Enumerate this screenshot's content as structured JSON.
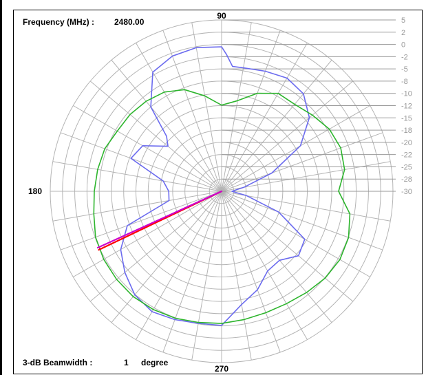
{
  "chart_data": {
    "type": "polar-line",
    "header": {
      "frequency_label": "Frequency (MHz) :",
      "frequency_value": "2480.00"
    },
    "footer": {
      "beamwidth_label": "3-dB Beamwidth :",
      "beamwidth_value": "1",
      "beamwidth_unit": "degree"
    },
    "angle_labels": [
      {
        "text": "90",
        "angle": 90
      },
      {
        "text": "180",
        "angle": 180
      },
      {
        "text": "270",
        "angle": 270
      }
    ],
    "radial_scale": {
      "unit": "dB",
      "min": -30,
      "max": 5,
      "ticks": [
        {
          "value": 5,
          "text": "5"
        },
        {
          "value": 2.5,
          "text": "2"
        },
        {
          "value": 0,
          "text": "0"
        },
        {
          "value": -2.5,
          "text": "-2"
        },
        {
          "value": -5,
          "text": "-5"
        },
        {
          "value": -7.5,
          "text": "-8"
        },
        {
          "value": -10,
          "text": "-10"
        },
        {
          "value": -12.5,
          "text": "-12"
        },
        {
          "value": -15,
          "text": "-15"
        },
        {
          "value": -17.5,
          "text": "-18"
        },
        {
          "value": -20,
          "text": "-20"
        },
        {
          "value": -22.5,
          "text": "-22"
        },
        {
          "value": -25,
          "text": "-25"
        },
        {
          "value": -27.5,
          "text": "-28"
        },
        {
          "value": -30,
          "text": "-30"
        }
      ]
    },
    "grid": true,
    "angular_grid_step_deg": 10,
    "series": [
      {
        "color": "#6b6bef",
        "points": [
          [
            0,
            -27.9
          ],
          [
            10,
            -25.4
          ],
          [
            20,
            -19.1
          ],
          [
            30,
            -11.4
          ],
          [
            40,
            -6.6
          ],
          [
            50,
            -4.0
          ],
          [
            60,
            -3.3
          ],
          [
            70,
            -3.9
          ],
          [
            80,
            -4.4
          ],
          [
            85,
            -4.4
          ],
          [
            88,
            -2.0
          ],
          [
            90,
            -0.5
          ],
          [
            100,
            -0.2
          ],
          [
            110,
            -0.6
          ],
          [
            120,
            -1.9
          ],
          [
            130,
            -7.5
          ],
          [
            135,
            -14.1
          ],
          [
            140,
            -15.7
          ],
          [
            150,
            -11.4
          ],
          [
            160,
            -10.3
          ],
          [
            170,
            -17.9
          ],
          [
            180,
            -19.2
          ],
          [
            190,
            -19.1
          ],
          [
            200,
            -9.5
          ],
          [
            210,
            -6.2
          ],
          [
            220,
            -4.2
          ],
          [
            230,
            -2.4
          ],
          [
            240,
            -1.6
          ],
          [
            250,
            -2.1
          ],
          [
            260,
            -2.6
          ],
          [
            270,
            -2.6
          ],
          [
            280,
            -6.5
          ],
          [
            290,
            -8.6
          ],
          [
            300,
            -11.2
          ],
          [
            310,
            -11.6
          ],
          [
            320,
            -9.5
          ],
          [
            330,
            -10.4
          ],
          [
            340,
            -17.6
          ],
          [
            350,
            -24.8
          ],
          [
            360,
            -27.9
          ]
        ]
      },
      {
        "color": "#2db52d",
        "points": [
          [
            0,
            -6.1
          ],
          [
            10,
            -4.5
          ],
          [
            20,
            -4.1
          ],
          [
            30,
            -4.6
          ],
          [
            40,
            -5.8
          ],
          [
            50,
            -6.8
          ],
          [
            60,
            -6.9
          ],
          [
            70,
            -8.7
          ],
          [
            80,
            -11.2
          ],
          [
            90,
            -12.4
          ],
          [
            100,
            -10.2
          ],
          [
            110,
            -7.9
          ],
          [
            120,
            -6.6
          ],
          [
            130,
            -6.0
          ],
          [
            140,
            -5.6
          ],
          [
            150,
            -5.4
          ],
          [
            160,
            -4.6
          ],
          [
            170,
            -4.3
          ],
          [
            180,
            -4.0
          ],
          [
            190,
            -3.5
          ],
          [
            200,
            -2.6
          ],
          [
            210,
            -2.2
          ],
          [
            220,
            -2.0
          ],
          [
            230,
            -1.9
          ],
          [
            240,
            -2.1
          ],
          [
            250,
            -2.4
          ],
          [
            260,
            -2.8
          ],
          [
            270,
            -3.0
          ],
          [
            280,
            -3.4
          ],
          [
            290,
            -3.6
          ],
          [
            300,
            -3.5
          ],
          [
            310,
            -3.0
          ],
          [
            320,
            -2.4
          ],
          [
            330,
            -2.1
          ],
          [
            340,
            -2.4
          ],
          [
            350,
            -3.4
          ],
          [
            360,
            -6.1
          ]
        ]
      }
    ],
    "beam_markers": [
      {
        "color": "#ff0000",
        "angle": 205.5,
        "value": -2.2
      },
      {
        "color": "#cc00cc",
        "angle": 204.5,
        "value": -2.2
      }
    ]
  }
}
